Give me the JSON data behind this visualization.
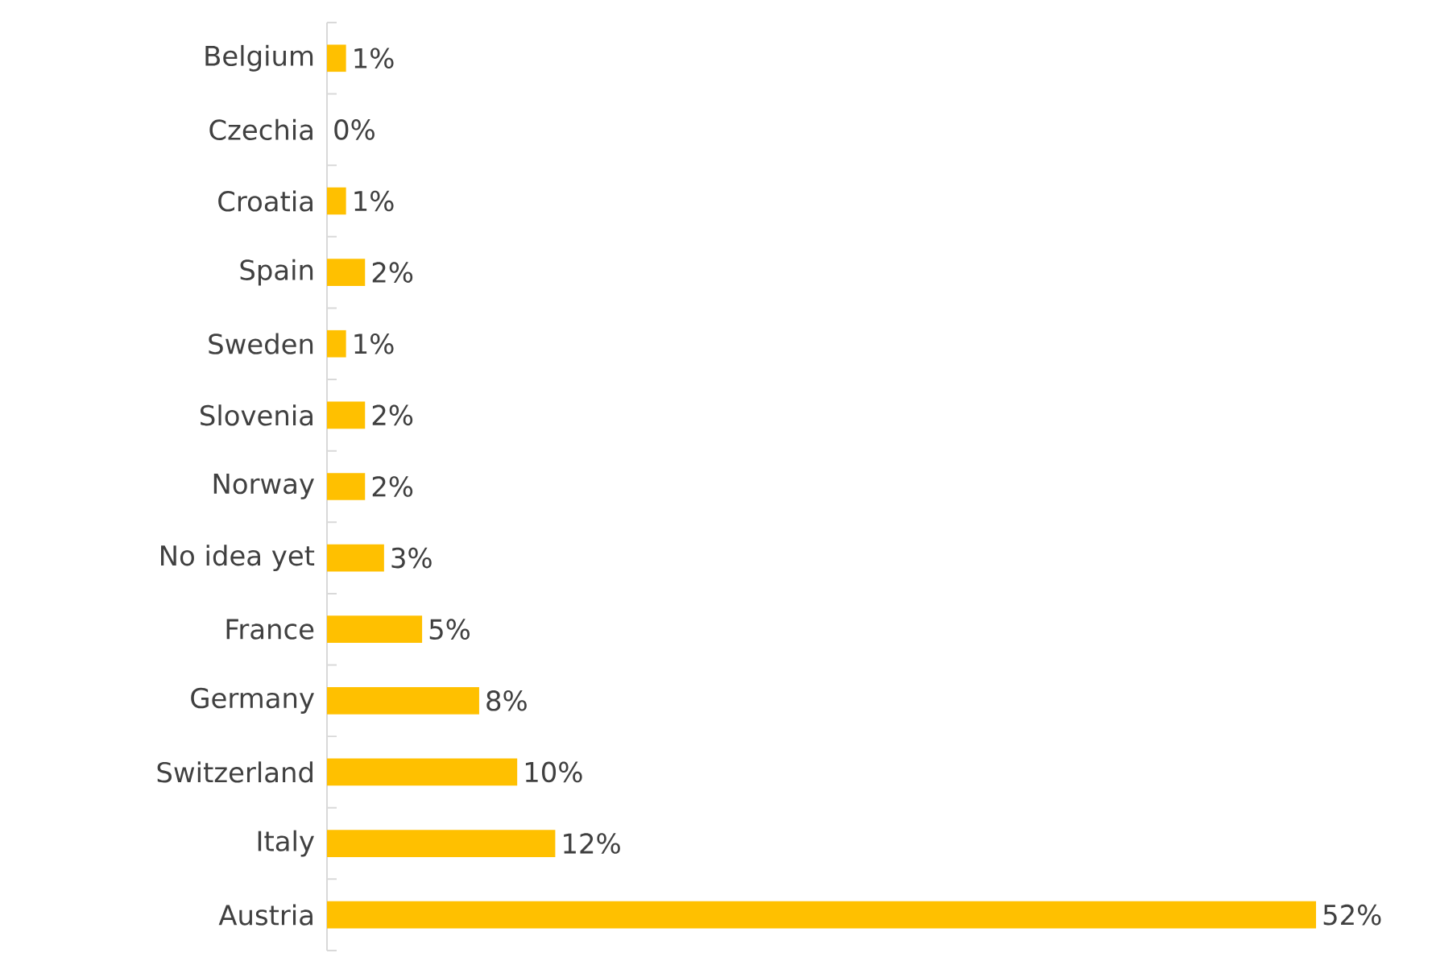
{
  "chart_data": {
    "type": "bar",
    "orientation": "horizontal",
    "categories": [
      "Belgium",
      "Czechia",
      "Croatia",
      "Spain",
      "Sweden",
      "Slovenia",
      "Norway",
      "No idea yet",
      "France",
      "Germany",
      "Switzerland",
      "Italy",
      "Austria"
    ],
    "values": [
      1,
      0,
      1,
      2,
      1,
      2,
      2,
      3,
      5,
      8,
      10,
      12,
      52
    ],
    "value_labels": [
      "1%",
      "0%",
      "1%",
      "2%",
      "1%",
      "2%",
      "2%",
      "3%",
      "5%",
      "8%",
      "10%",
      "12%",
      "52%"
    ],
    "color": "#ffc000"
  }
}
